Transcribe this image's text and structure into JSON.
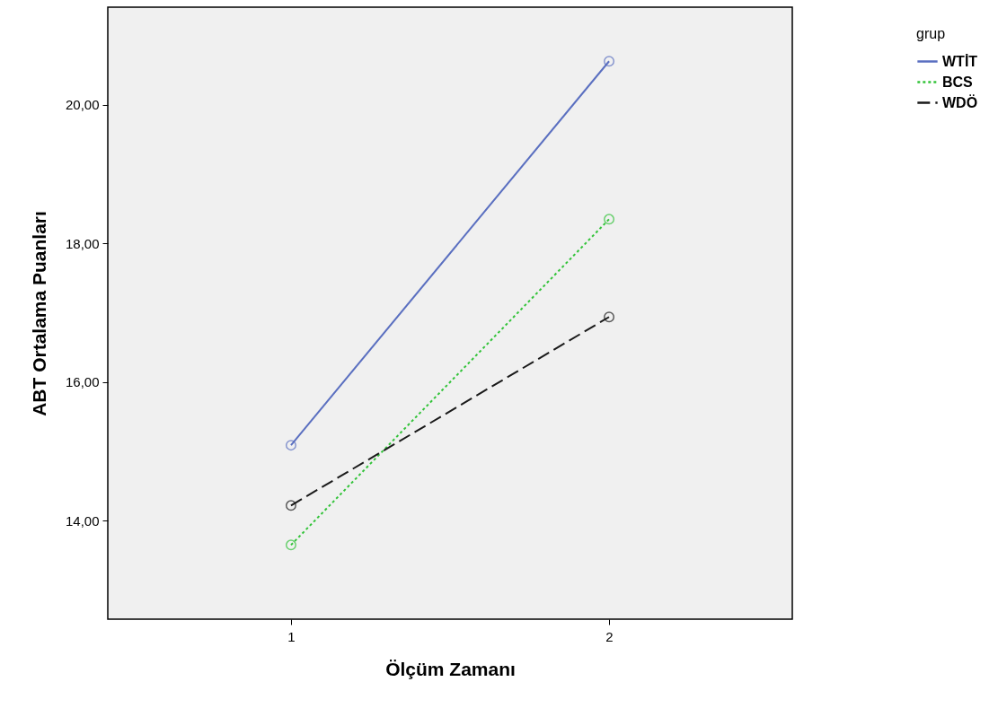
{
  "chart_data": {
    "type": "line",
    "xlabel": "Ölçüm Zamanı",
    "ylabel": "ABT Ortalama Puanları",
    "legend_title": "grup",
    "categories": [
      "1",
      "2"
    ],
    "series": [
      {
        "name": "WTİT",
        "color": "#5a6fc0",
        "line_style": "solid",
        "values": [
          15.09,
          20.63
        ]
      },
      {
        "name": "BCS",
        "color": "#33c33a",
        "line_style": "dotted",
        "values": [
          13.65,
          18.35
        ]
      },
      {
        "name": "WDÖ",
        "color": "#1a1a1a",
        "line_style": "dashed",
        "values": [
          14.22,
          16.94
        ]
      }
    ],
    "ylim": [
      12.58,
      21.41
    ],
    "yticks": [
      {
        "value": 14,
        "label": "14,00"
      },
      {
        "value": 16,
        "label": "16,00"
      },
      {
        "value": 18,
        "label": "18,00"
      },
      {
        "value": 20,
        "label": "20,00"
      }
    ],
    "grid": false,
    "legend": "top right",
    "marker": "circle"
  }
}
